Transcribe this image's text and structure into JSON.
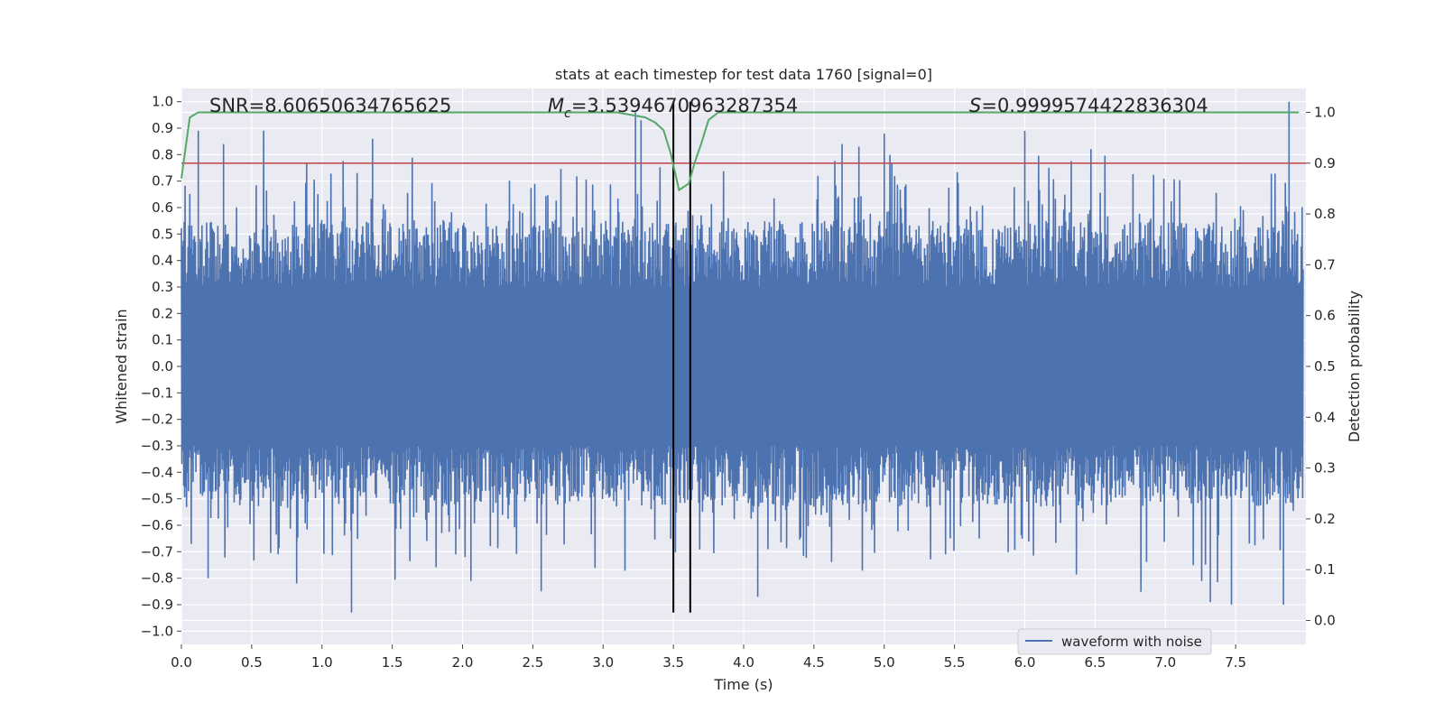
{
  "chart_data": {
    "type": "line",
    "title": "stats at each timestep for test data 1760 [signal=0]",
    "xlabel": "Time (s)",
    "ylabel": "Whitened strain",
    "y2label": "Detection probability",
    "xlim": [
      0.0,
      8.0
    ],
    "ylim": [
      -1.05,
      1.05
    ],
    "y2lim": [
      -0.047,
      1.047
    ],
    "xticks": [
      "0.0",
      "0.5",
      "1.0",
      "1.5",
      "2.0",
      "2.5",
      "3.0",
      "3.5",
      "4.0",
      "4.5",
      "5.0",
      "5.5",
      "6.0",
      "6.5",
      "7.0",
      "7.5"
    ],
    "xtick_values": [
      0.0,
      0.5,
      1.0,
      1.5,
      2.0,
      2.5,
      3.0,
      3.5,
      4.0,
      4.5,
      5.0,
      5.5,
      6.0,
      6.5,
      7.0,
      7.5
    ],
    "yticks": [
      "1.0",
      "0.9",
      "0.8",
      "0.7",
      "0.6",
      "0.5",
      "0.4",
      "0.3",
      "0.2",
      "0.1",
      "0.0",
      "−0.1",
      "−0.2",
      "−0.3",
      "−0.4",
      "−0.5",
      "−0.6",
      "−0.7",
      "−0.8",
      "−0.9",
      "−1.0"
    ],
    "ytick_values": [
      1.0,
      0.9,
      0.8,
      0.7,
      0.6,
      0.5,
      0.4,
      0.3,
      0.2,
      0.1,
      0.0,
      -0.1,
      -0.2,
      -0.3,
      -0.4,
      -0.5,
      -0.6,
      -0.7,
      -0.8,
      -0.9,
      -1.0
    ],
    "y2ticks": [
      "1.0",
      "0.9",
      "0.8",
      "0.7",
      "0.6",
      "0.5",
      "0.4",
      "0.3",
      "0.2",
      "0.1",
      "0.0"
    ],
    "y2tick_values": [
      1.0,
      0.9,
      0.8,
      0.7,
      0.6,
      0.5,
      0.4,
      0.3,
      0.2,
      0.1,
      0.0
    ],
    "annotations": {
      "snr": "SNR=8.60650634765625",
      "mc_symbol": "M",
      "mc_sub": "c",
      "mc_value": "=3.5394670963287354",
      "s_symbol": "S",
      "s_value": "=0.9999574422836304"
    },
    "threshold": {
      "value": 0.9,
      "axis": "y2",
      "color": "#c44e52"
    },
    "detection_window": {
      "start": 3.5,
      "end": 3.62,
      "color": "#000000"
    },
    "series": [
      {
        "name": "waveform with noise",
        "axis": "y",
        "color": "#4c72b0",
        "style": "dense noise, duration 8.0 s",
        "envelope_range": [
          -0.93,
          1.0
        ],
        "notable_peaks": [
          {
            "t": 0.12,
            "v": 0.89
          },
          {
            "t": 0.3,
            "v": 0.84
          },
          {
            "t": 1.36,
            "v": 0.86
          },
          {
            "t": 3.23,
            "v": 0.96
          },
          {
            "t": 3.27,
            "v": 0.93
          },
          {
            "t": 4.7,
            "v": 0.84
          },
          {
            "t": 4.82,
            "v": 0.83
          },
          {
            "t": 5.0,
            "v": 0.88
          },
          {
            "t": 6.0,
            "v": 0.89
          },
          {
            "t": 7.88,
            "v": 1.0
          }
        ],
        "notable_troughs": [
          {
            "t": 0.19,
            "v": -0.8
          },
          {
            "t": 0.82,
            "v": -0.82
          },
          {
            "t": 1.21,
            "v": -0.93
          },
          {
            "t": 2.06,
            "v": -0.81
          },
          {
            "t": 2.56,
            "v": -0.85
          },
          {
            "t": 4.1,
            "v": -0.87
          },
          {
            "t": 7.32,
            "v": -0.89
          },
          {
            "t": 7.47,
            "v": -0.9
          },
          {
            "t": 7.84,
            "v": -0.9
          }
        ]
      },
      {
        "name": "detection probability",
        "axis": "y2",
        "color": "#55a868",
        "x": [
          0.0,
          0.06,
          0.12,
          3.1,
          3.3,
          3.37,
          3.43,
          3.48,
          3.54,
          3.61,
          3.65,
          3.7,
          3.75,
          3.82,
          7.95
        ],
        "values": [
          0.87,
          0.99,
          1.0,
          1.0,
          0.99,
          0.98,
          0.965,
          0.92,
          0.847,
          0.86,
          0.9,
          0.94,
          0.985,
          1.0,
          1.0
        ]
      }
    ],
    "legend": {
      "position": "lower-right",
      "entries": [
        "waveform with noise"
      ]
    }
  }
}
